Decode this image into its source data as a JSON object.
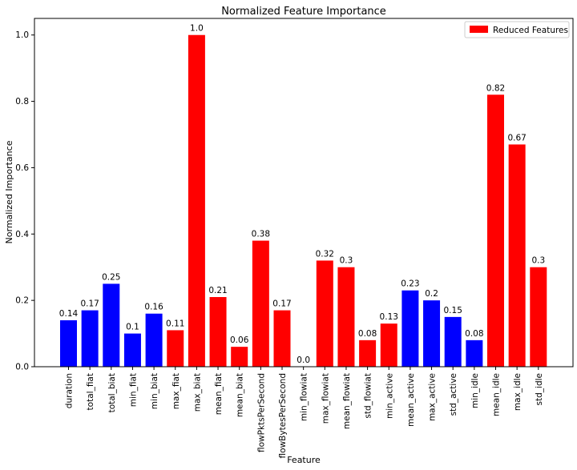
{
  "chart_data": {
    "type": "bar",
    "title": "Normalized Feature Importance",
    "xlabel": "Feature",
    "ylabel": "Normalized Importance",
    "ylim": [
      0,
      1.05
    ],
    "yticks": [
      0.0,
      0.2,
      0.4,
      0.6,
      0.8,
      1.0
    ],
    "ytick_labels": [
      "0.0",
      "0.2",
      "0.4",
      "0.6",
      "0.8",
      "1.0"
    ],
    "grid": false,
    "legend": {
      "placement": "top-right",
      "entries": [
        {
          "label": "Reduced Features",
          "color": "#ff0000"
        }
      ]
    },
    "categories": [
      "duration",
      "total_fiat",
      "total_biat",
      "min_fiat",
      "min_biat",
      "max_fiat",
      "max_biat",
      "mean_fiat",
      "mean_biat",
      "flowPktsPerSecond",
      "flowBytesPerSecond",
      "min_flowiat",
      "max_flowiat",
      "mean_flowiat",
      "std_flowiat",
      "min_active",
      "mean_active",
      "max_active",
      "std_active",
      "min_idle",
      "mean_idle",
      "max_idle",
      "std_idle"
    ],
    "values": [
      0.14,
      0.17,
      0.25,
      0.1,
      0.16,
      0.11,
      1.0,
      0.21,
      0.06,
      0.38,
      0.17,
      0.0,
      0.32,
      0.3,
      0.08,
      0.13,
      0.23,
      0.2,
      0.15,
      0.08,
      0.82,
      0.67,
      0.3
    ],
    "data_labels": [
      "0.14",
      "0.17",
      "0.25",
      "0.1",
      "0.16",
      "0.11",
      "1.0",
      "0.21",
      "0.06",
      "0.38",
      "0.17",
      "0.0",
      "0.32",
      "0.3",
      "0.08",
      "0.13",
      "0.23",
      "0.2",
      "0.15",
      "0.08",
      "0.82",
      "0.67",
      "0.3"
    ],
    "reduced": [
      false,
      false,
      false,
      false,
      false,
      true,
      true,
      true,
      true,
      true,
      true,
      true,
      true,
      true,
      true,
      true,
      false,
      false,
      false,
      false,
      true,
      true,
      true
    ],
    "colors": {
      "reduced": "#ff0000",
      "other": "#0000ff"
    }
  }
}
